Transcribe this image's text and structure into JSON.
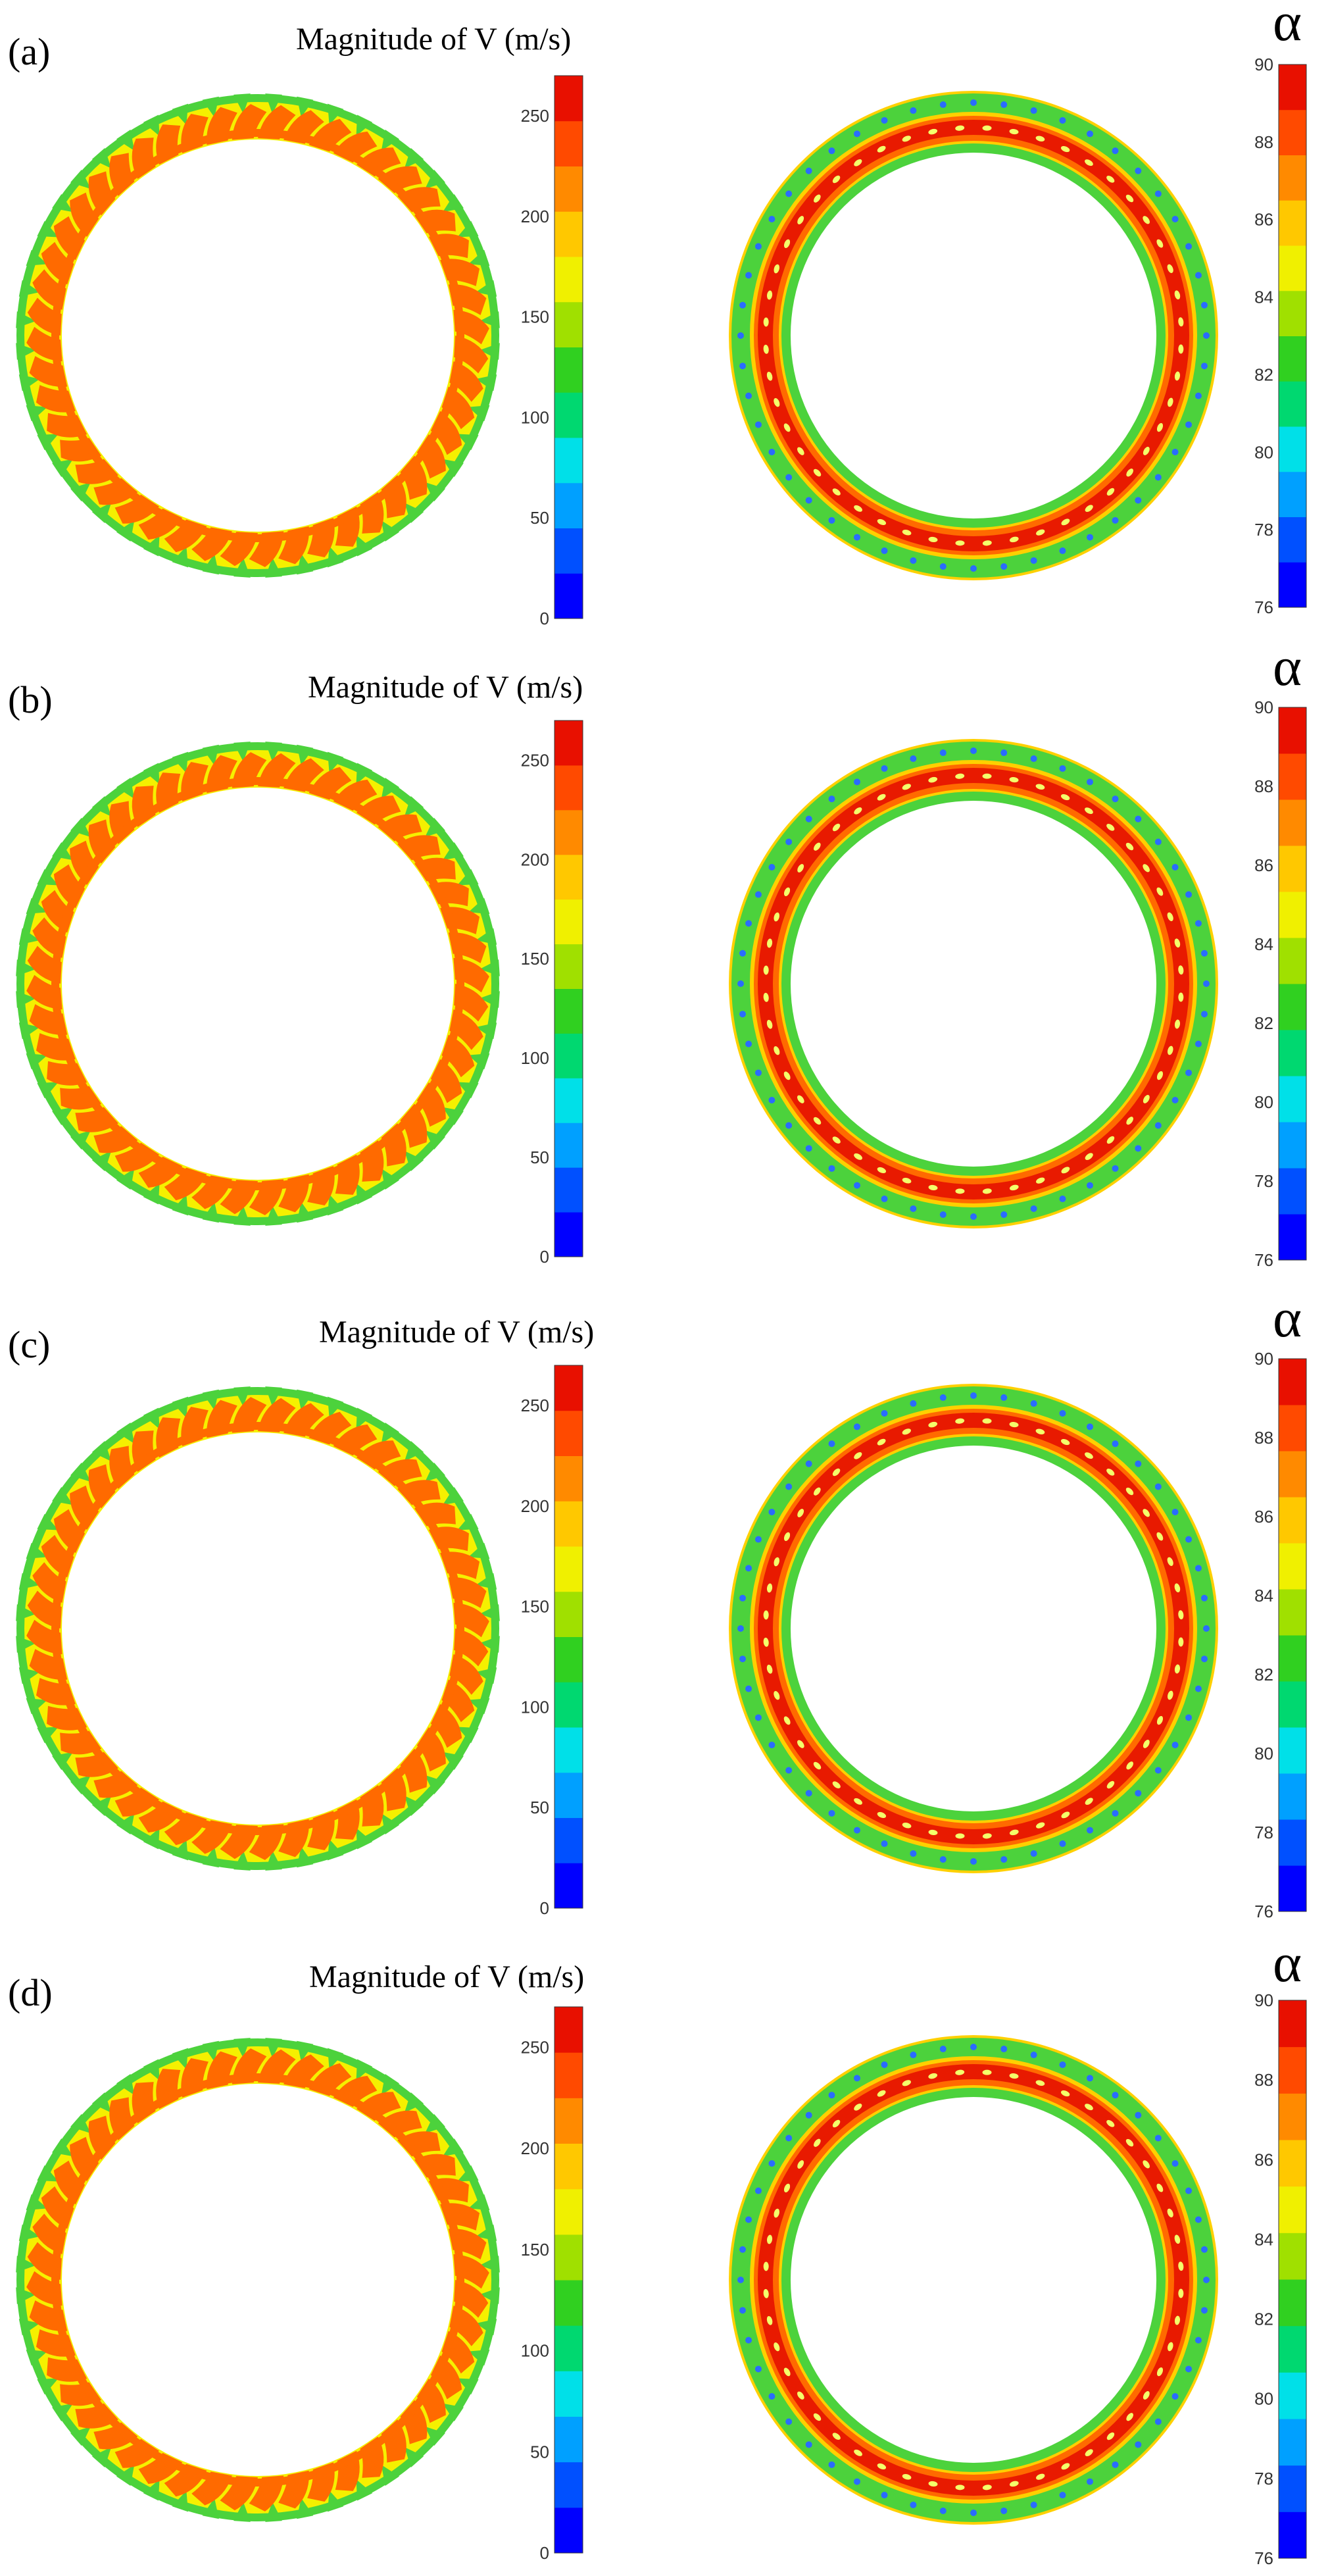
{
  "panels": [
    {
      "label": "(a)",
      "velocity_title": "Magnitude of V (m/s)",
      "alpha_title": "α"
    },
    {
      "label": "(b)",
      "velocity_title": "Magnitude of V (m/s)",
      "alpha_title": "α"
    },
    {
      "label": "(c)",
      "velocity_title": "Magnitude of V (m/s)",
      "alpha_title": "α"
    },
    {
      "label": "(d)",
      "velocity_title": "Magnitude of V (m/s)",
      "alpha_title": "α"
    }
  ],
  "velocity_colorbar": {
    "min": 0,
    "max": 270,
    "ticks": [
      "0",
      "50",
      "100",
      "150",
      "200",
      "250"
    ]
  },
  "alpha_colorbar": {
    "min": 76,
    "max": 90,
    "ticks": [
      "76",
      "78",
      "80",
      "82",
      "84",
      "86",
      "88",
      "90"
    ]
  },
  "colors": {
    "jet_scale": [
      "#0000ff",
      "#0050ff",
      "#00a0ff",
      "#00e0e8",
      "#00d870",
      "#30d020",
      "#a0e000",
      "#f0f000",
      "#ffc800",
      "#ff8a00",
      "#ff4a00",
      "#e81000"
    ],
    "outer_green": "#4cd23c",
    "yellow": "#f5f000",
    "orange": "#ff6a00",
    "red": "#e81a00",
    "blue_dot": "#2a6cff",
    "light_yellow": "#f4ff6a"
  }
}
